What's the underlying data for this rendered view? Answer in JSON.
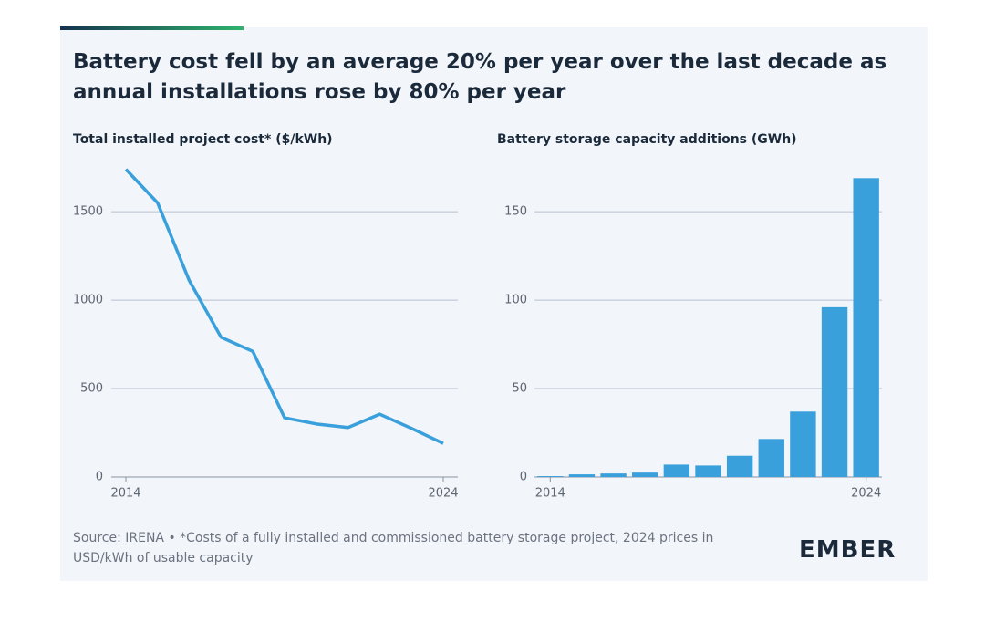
{
  "header": {
    "title": "Battery cost fell by an average 20% per year over the last decade as annual installations rose by 80% per year"
  },
  "footer": {
    "source": "Source: IRENA • *Costs of a fully installed and commissioned battery storage project, 2024 prices in USD/kWh of usable capacity",
    "logo": "EMBER"
  },
  "chart_data": [
    {
      "type": "line",
      "title": "Total installed project cost* ($/kWh)",
      "color": "#3aa0dc",
      "x": [
        2014,
        2015,
        2016,
        2017,
        2018,
        2019,
        2020,
        2021,
        2022,
        2023,
        2024
      ],
      "values": [
        1740,
        1550,
        1110,
        790,
        710,
        335,
        300,
        280,
        355,
        275,
        190
      ],
      "xlim": [
        2014,
        2024
      ],
      "xticks": [
        2014,
        2024
      ],
      "ylim": [
        0,
        1800
      ],
      "yticks": [
        0,
        500,
        1000,
        1500
      ],
      "grid": true
    },
    {
      "type": "bar",
      "title": "Battery storage capacity additions (GWh)",
      "color": "#3aa0dc",
      "x": [
        2014,
        2015,
        2016,
        2017,
        2018,
        2019,
        2020,
        2021,
        2022,
        2023,
        2024
      ],
      "values": [
        0.5,
        1.5,
        2,
        2.5,
        7,
        6.5,
        12,
        21.5,
        37,
        96,
        169
      ],
      "xlim": [
        2013.5,
        2024.5
      ],
      "xticks": [
        2014,
        2024
      ],
      "ylim": [
        0,
        180
      ],
      "yticks": [
        0,
        50,
        100,
        150
      ],
      "grid": true
    }
  ]
}
